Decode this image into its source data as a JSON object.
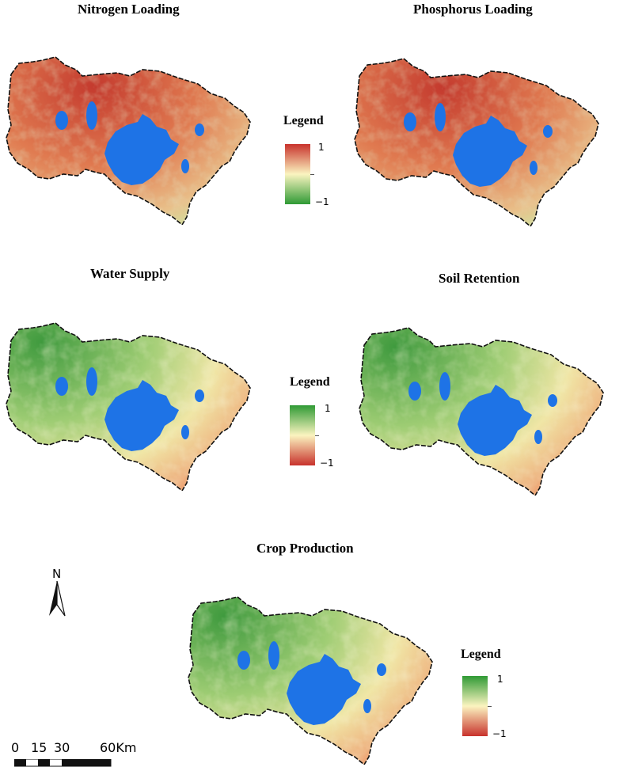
{
  "colors": {
    "lake": "#1e73e6",
    "high": "#c8322c",
    "mid": "#fbf4c0",
    "low": "#2f9a35",
    "boundary": "#111111"
  },
  "maps": [
    {
      "title": "Nitrogen Loading",
      "scheme": "reds-dominant"
    },
    {
      "title": "Phosphorus Loading",
      "scheme": "reds-dominant"
    },
    {
      "title": "Water Supply",
      "scheme": "greens-dominant"
    },
    {
      "title": "Soil Retention",
      "scheme": "greens-dominant"
    },
    {
      "title": "Crop Production",
      "scheme": "greens-dominant"
    }
  ],
  "legends": [
    {
      "title": "Legend",
      "top": "1",
      "bottom": "−1",
      "top_color": "red",
      "bottom_color": "green"
    },
    {
      "title": "Legend",
      "top": "1",
      "bottom": "−1",
      "top_color": "green",
      "bottom_color": "red"
    },
    {
      "title": "Legend",
      "top": "1",
      "bottom": "−1",
      "top_color": "green",
      "bottom_color": "red"
    }
  ],
  "north": {
    "label": "N",
    "icon": "north-arrow-icon"
  },
  "scale": {
    "labels": [
      "0",
      "15",
      "30",
      "60Km"
    ]
  }
}
